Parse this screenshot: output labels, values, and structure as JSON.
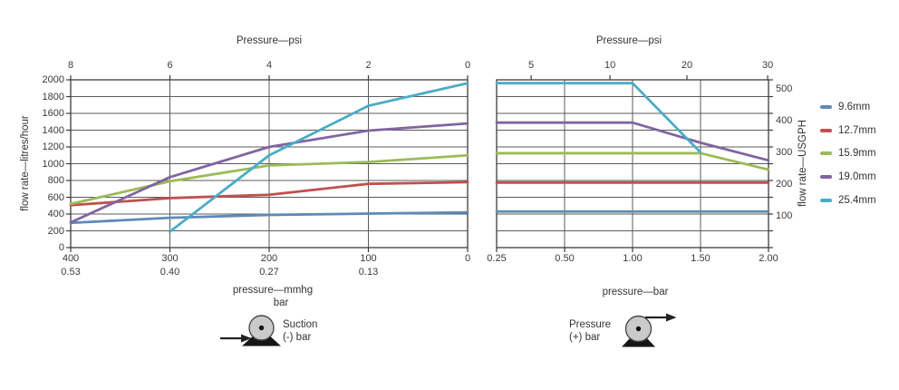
{
  "page": {
    "background": "#ffffff"
  },
  "legend": {
    "items": [
      {
        "label": "9.6mm",
        "color": "#5f8ab5"
      },
      {
        "label": "12.7mm",
        "color": "#c0504d"
      },
      {
        "label": "15.9mm",
        "color": "#9bbb59"
      },
      {
        "label": "19.0mm",
        "color": "#8064a2"
      },
      {
        "label": "25.4mm",
        "color": "#4bacc6"
      }
    ]
  },
  "annotations": {
    "suction": {
      "line1": "Suction",
      "line2": "(-) bar"
    },
    "pressure": {
      "line1": "Pressure",
      "line2": "(+) bar"
    }
  },
  "chart_data": [
    {
      "type": "line",
      "title": "Pressure—psi",
      "top_axis": {
        "ticks": [
          {
            "label": "8",
            "pos": 0.0
          },
          {
            "label": "6",
            "pos": 0.25
          },
          {
            "label": "4",
            "pos": 0.5
          },
          {
            "label": "2",
            "pos": 0.75
          },
          {
            "label": "0",
            "pos": 1.0
          }
        ]
      },
      "x_axis": {
        "categories": [
          "400",
          "300",
          "200",
          "100",
          "0"
        ],
        "secondary": [
          "0.53",
          "0.40",
          "0.27",
          "0.13",
          null
        ],
        "label_line1": "pressure—mmhg",
        "label_line2": "bar"
      },
      "y_axis": {
        "label": "flow rate—litres/hour",
        "min": 0,
        "max": 2000,
        "step": 200,
        "side": "left"
      },
      "series": [
        {
          "name": "9.6mm",
          "color": "#5f8ab5",
          "values": [
            295,
            355,
            390,
            405,
            420
          ]
        },
        {
          "name": "12.7mm",
          "color": "#c0504d",
          "values": [
            505,
            590,
            630,
            760,
            780
          ]
        },
        {
          "name": "15.9mm",
          "color": "#9bbb59",
          "values": [
            520,
            790,
            980,
            1020,
            1100
          ]
        },
        {
          "name": "19.0mm",
          "color": "#8064a2",
          "values": [
            300,
            840,
            1200,
            1395,
            1480
          ]
        },
        {
          "name": "25.4mm",
          "color": "#4bacc6",
          "values": [
            null,
            190,
            1100,
            1690,
            1960
          ]
        }
      ]
    },
    {
      "type": "line",
      "title": "Pressure—psi",
      "top_axis": {
        "ticks": [
          {
            "label": "5",
            "pos": 0.127
          },
          {
            "label": "10",
            "pos": 0.417
          },
          {
            "label": "20",
            "pos": 0.7
          },
          {
            "label": "30",
            "pos": 0.997
          }
        ]
      },
      "x_axis": {
        "categories": [
          "0.25",
          "0.50",
          "1.00",
          "1.50",
          "2.00"
        ],
        "label_line1": "pressure—bar"
      },
      "y_axis": {
        "min": 0,
        "max": 2000,
        "step": 200,
        "side": "none"
      },
      "right_axis": {
        "label": "flow rate—USGPH",
        "ticks": [
          {
            "label": "500",
            "value": 1893
          },
          {
            "label": "400",
            "value": 1514
          },
          {
            "label": "300",
            "value": 1136
          },
          {
            "label": "200",
            "value": 757
          },
          {
            "label": "100",
            "value": 378
          }
        ]
      },
      "series": [
        {
          "name": "9.6mm",
          "color": "#5f8ab5",
          "values": [
            430,
            430,
            430,
            430,
            430
          ]
        },
        {
          "name": "12.7mm",
          "color": "#c0504d",
          "values": [
            775,
            775,
            775,
            775,
            775
          ]
        },
        {
          "name": "15.9mm",
          "color": "#9bbb59",
          "values": [
            1125,
            1125,
            1125,
            1125,
            930
          ]
        },
        {
          "name": "19.0mm",
          "color": "#8064a2",
          "values": [
            1490,
            1490,
            1490,
            1250,
            1040
          ]
        },
        {
          "name": "25.4mm",
          "color": "#4bacc6",
          "values": [
            1960,
            1960,
            1960,
            1135,
            null
          ]
        }
      ]
    }
  ]
}
